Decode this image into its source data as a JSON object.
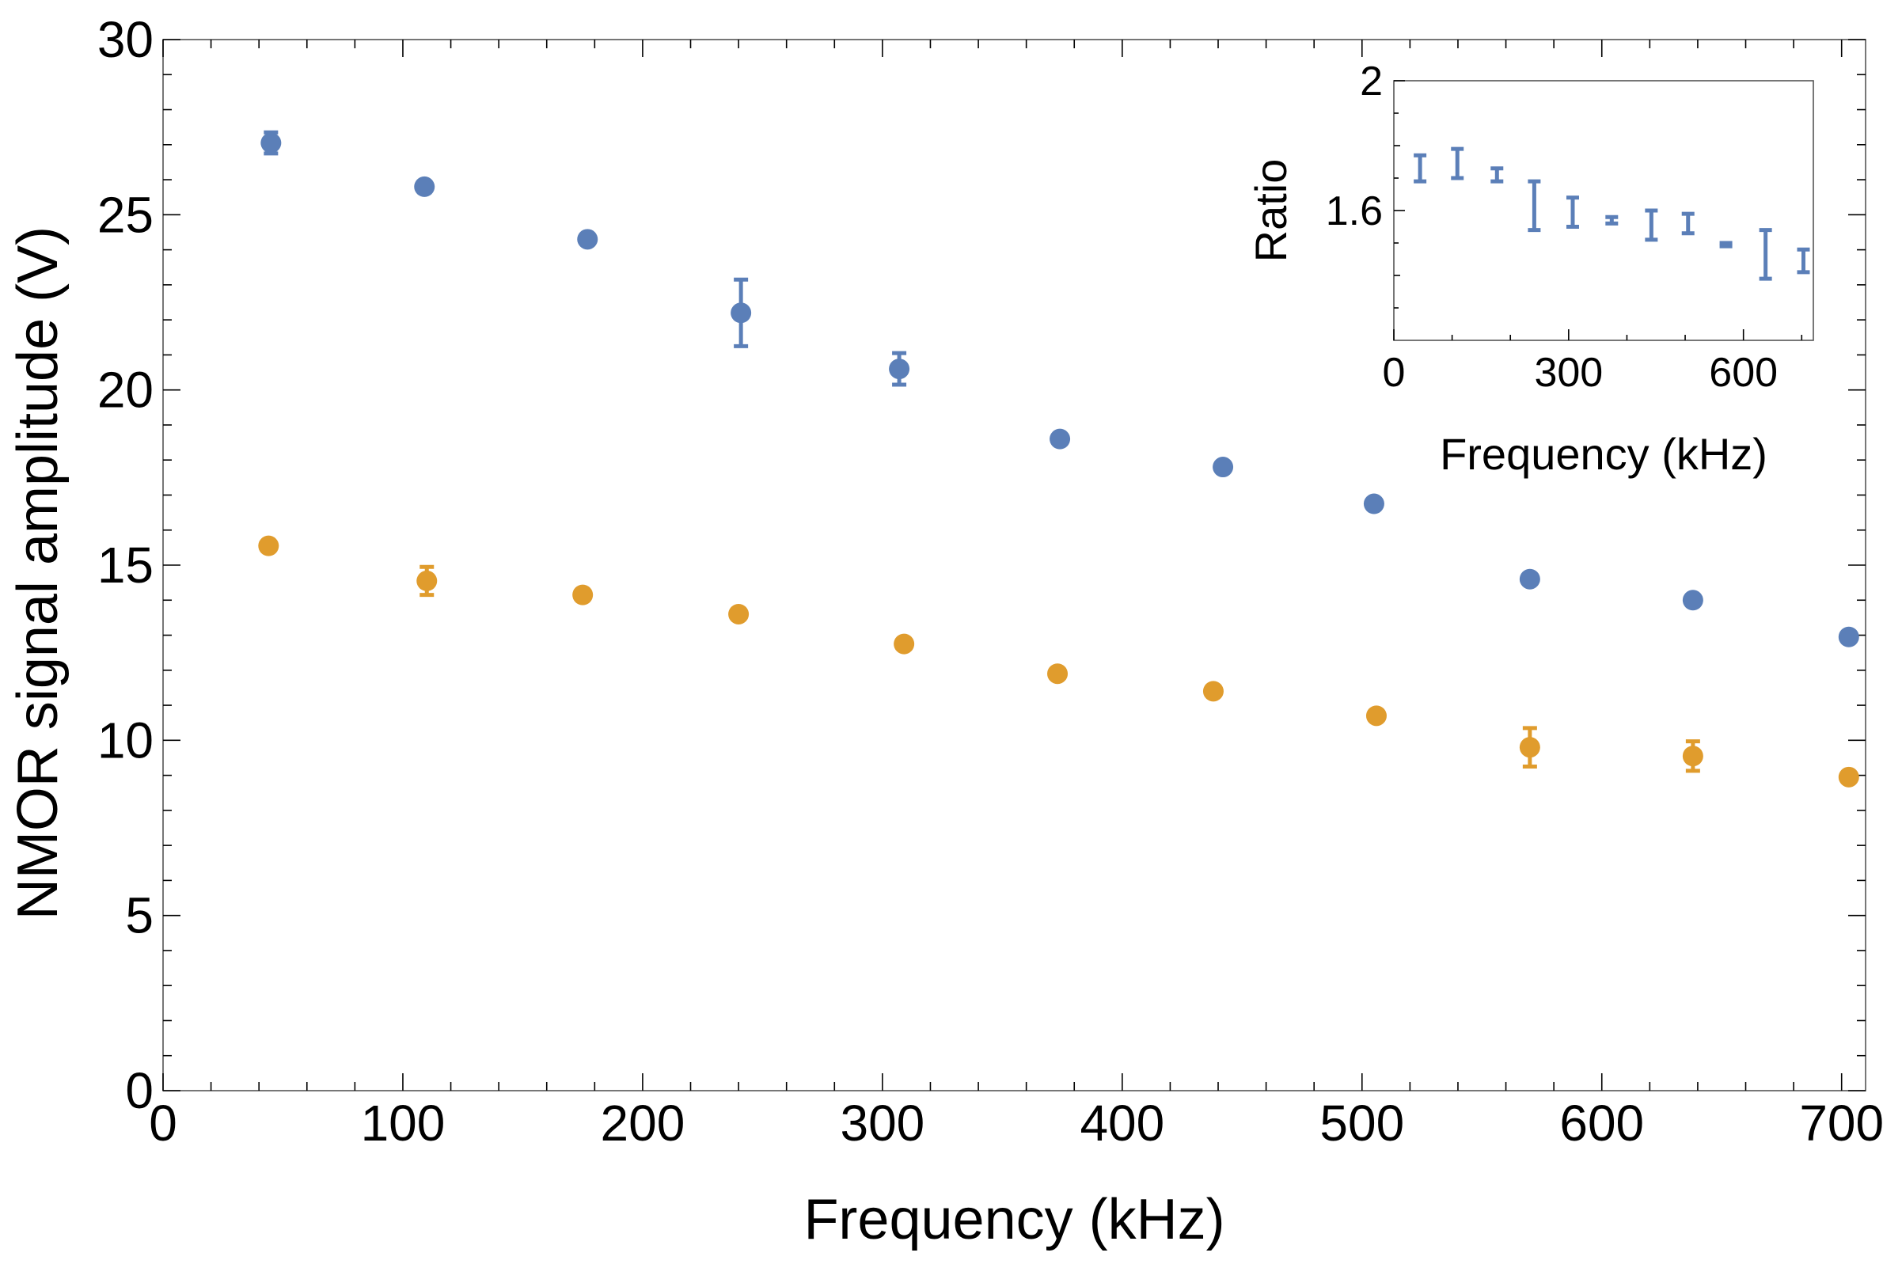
{
  "chart_data": [
    {
      "type": "scatter",
      "xlabel": "Frequency (kHz)",
      "ylabel": "NMOR signal amplitude (V)",
      "xlim": [
        0,
        710
      ],
      "ylim": [
        0,
        30
      ],
      "x_ticks": [
        "0",
        "100",
        "200",
        "300",
        "400",
        "500",
        "600",
        "700"
      ],
      "y_ticks": [
        "0",
        "5",
        "10",
        "15",
        "20",
        "25",
        "30"
      ],
      "grid": false,
      "series": [
        {
          "name": "blue",
          "color": "#5b7fb8",
          "points": [
            {
              "x": 45,
              "y": 27.05,
              "err": 0.3
            },
            {
              "x": 109,
              "y": 25.8,
              "err": 0.1
            },
            {
              "x": 177,
              "y": 24.3,
              "err": 0.1
            },
            {
              "x": 241,
              "y": 22.2,
              "err": 0.95
            },
            {
              "x": 307,
              "y": 20.6,
              "err": 0.45
            },
            {
              "x": 374,
              "y": 18.6,
              "err": 0.1
            },
            {
              "x": 442,
              "y": 17.8,
              "err": 0.1
            },
            {
              "x": 505,
              "y": 16.75,
              "err": 0.1
            },
            {
              "x": 570,
              "y": 14.6,
              "err": 0.1
            },
            {
              "x": 638,
              "y": 14.0,
              "err": 0.1
            },
            {
              "x": 703,
              "y": 12.95,
              "err": 0.1
            }
          ]
        },
        {
          "name": "orange",
          "color": "#e09c2d",
          "points": [
            {
              "x": 44,
              "y": 15.55,
              "err": 0.1
            },
            {
              "x": 110,
              "y": 14.55,
              "err": 0.4
            },
            {
              "x": 175,
              "y": 14.15,
              "err": 0.1
            },
            {
              "x": 240,
              "y": 13.6,
              "err": 0.1
            },
            {
              "x": 309,
              "y": 12.75,
              "err": 0.1
            },
            {
              "x": 373,
              "y": 11.9,
              "err": 0.1
            },
            {
              "x": 438,
              "y": 11.4,
              "err": 0.1
            },
            {
              "x": 506,
              "y": 10.7,
              "err": 0.1
            },
            {
              "x": 570,
              "y": 9.8,
              "err": 0.55
            },
            {
              "x": 638,
              "y": 9.55,
              "err": 0.42
            },
            {
              "x": 703,
              "y": 8.95,
              "err": 0.1
            }
          ]
        }
      ]
    },
    {
      "type": "scatter",
      "placement": "top-right inset",
      "xlabel": "Frequency (kHz)",
      "ylabel": "Ratio",
      "xlim": [
        0,
        720
      ],
      "ylim": [
        1.2,
        2.0
      ],
      "x_ticks": [
        "0",
        "300",
        "600"
      ],
      "y_ticks": [
        "1.6",
        "2"
      ],
      "grid": false,
      "series": [
        {
          "name": "ratio",
          "color": "#5b7fb8",
          "points": [
            {
              "x": 45,
              "low": 1.69,
              "high": 1.77
            },
            {
              "x": 109,
              "low": 1.7,
              "high": 1.79
            },
            {
              "x": 177,
              "low": 1.69,
              "high": 1.73
            },
            {
              "x": 241,
              "low": 1.54,
              "high": 1.69
            },
            {
              "x": 307,
              "low": 1.55,
              "high": 1.64
            },
            {
              "x": 374,
              "low": 1.56,
              "high": 1.58
            },
            {
              "x": 442,
              "low": 1.51,
              "high": 1.6
            },
            {
              "x": 505,
              "low": 1.53,
              "high": 1.59
            },
            {
              "x": 570,
              "low": 1.49,
              "high": 1.5
            },
            {
              "x": 638,
              "low": 1.39,
              "high": 1.54
            },
            {
              "x": 703,
              "low": 1.41,
              "high": 1.48
            }
          ]
        }
      ]
    }
  ]
}
